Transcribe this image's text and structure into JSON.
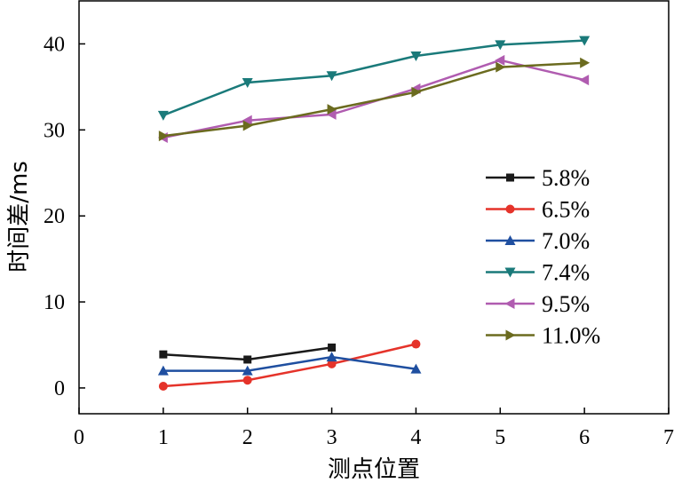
{
  "chart_data": {
    "type": "line",
    "xlabel": "测点位置",
    "ylabel": "时间差/ms",
    "xlim": [
      0,
      7
    ],
    "ylim": [
      -3,
      45
    ],
    "x_ticks": [
      0,
      1,
      2,
      3,
      4,
      5,
      6,
      7
    ],
    "y_ticks": [
      0,
      10,
      20,
      30,
      40
    ],
    "grid": false,
    "legend_position": "right",
    "series": [
      {
        "name": "5.8%",
        "color": "#1a1a1a",
        "marker": "square",
        "x": [
          1,
          2,
          3
        ],
        "values": [
          3.9,
          3.3,
          4.7
        ]
      },
      {
        "name": "6.5%",
        "color": "#e5332a",
        "marker": "circle",
        "x": [
          1,
          2,
          3,
          4
        ],
        "values": [
          0.2,
          0.9,
          2.8,
          5.1
        ]
      },
      {
        "name": "7.0%",
        "color": "#1f4fa0",
        "marker": "triangle-up",
        "x": [
          1,
          2,
          3,
          4
        ],
        "values": [
          2.0,
          2.0,
          3.6,
          2.2
        ]
      },
      {
        "name": "7.4%",
        "color": "#1a7a7a",
        "marker": "triangle-down",
        "x": [
          1,
          2,
          3,
          4,
          5,
          6
        ],
        "values": [
          31.7,
          35.5,
          36.3,
          38.6,
          39.9,
          40.4
        ]
      },
      {
        "name": "9.5%",
        "color": "#b05cb0",
        "marker": "triangle-left",
        "x": [
          1,
          2,
          3,
          4,
          5,
          6
        ],
        "values": [
          29.1,
          31.1,
          31.8,
          34.8,
          38.1,
          35.8
        ]
      },
      {
        "name": "11.0%",
        "color": "#6b6b1f",
        "marker": "triangle-right",
        "x": [
          1,
          2,
          3,
          4,
          5,
          6
        ],
        "values": [
          29.3,
          30.5,
          32.4,
          34.4,
          37.3,
          37.8
        ]
      }
    ]
  }
}
